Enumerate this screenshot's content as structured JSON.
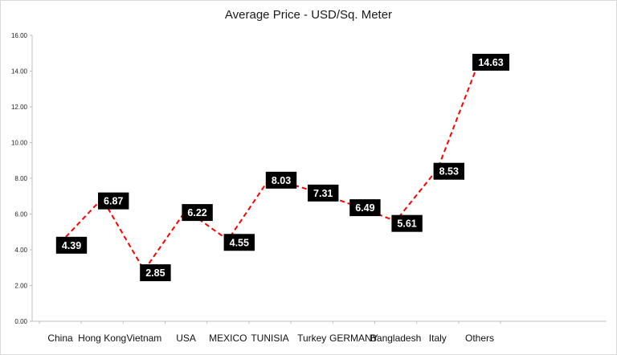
{
  "chart_data": {
    "type": "line",
    "title": "Average Price - USD/Sq. Meter",
    "xlabel": "",
    "ylabel": "",
    "ylim": [
      0,
      16
    ],
    "y_ticks": [
      "0.00",
      "2.00",
      "4.00",
      "6.00",
      "8.00",
      "10.00",
      "12.00",
      "14.00",
      "16.00"
    ],
    "categories": [
      "China",
      "Hong Kong",
      "Vietnam",
      "USA",
      "MEXICO",
      "TUNISIA",
      "Turkey",
      "GERMANY",
      "Bangladesh",
      "Italy",
      "Others"
    ],
    "values": [
      4.39,
      6.87,
      2.85,
      6.22,
      4.55,
      8.03,
      7.31,
      6.49,
      5.61,
      8.53,
      14.63
    ],
    "data_labels": [
      "4.39",
      "6.87",
      "2.85",
      "6.22",
      "4.55",
      "8.03",
      "7.31",
      "6.49",
      "5.61",
      "8.53",
      "14.63"
    ],
    "line_style": "dashed",
    "line_color": "#ff0000",
    "label_background": "#000000",
    "label_text_color": "#ffffff",
    "grid": false,
    "legend": "none"
  }
}
